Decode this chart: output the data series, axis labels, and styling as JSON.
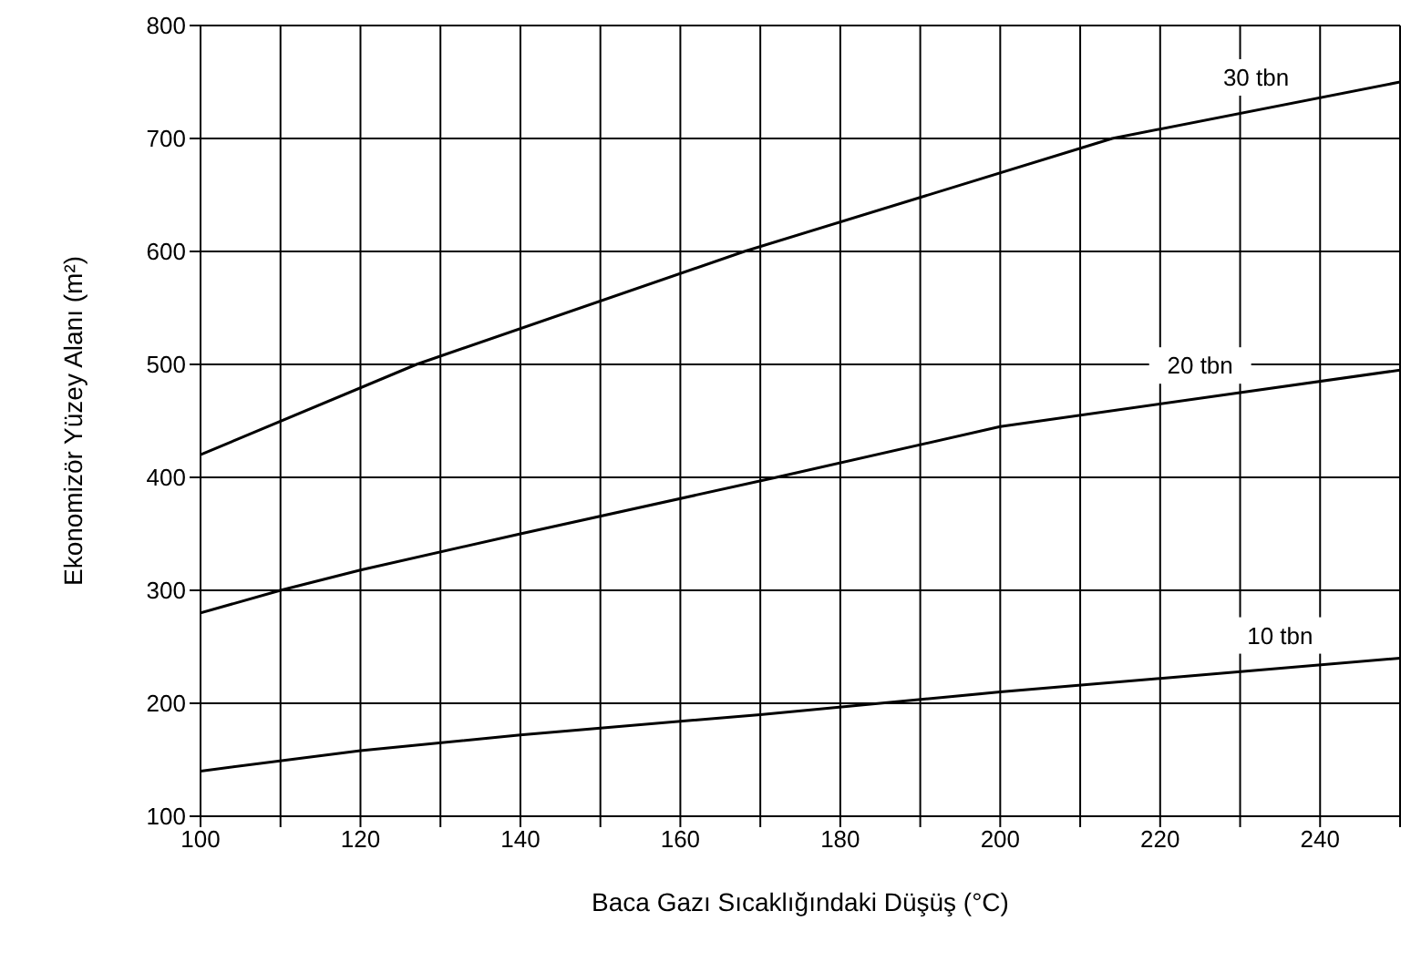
{
  "chart_data": {
    "type": "line",
    "xlabel": "Baca Gazı Sıcaklığındaki Düşüş (°C)",
    "ylabel": "Ekonomizör Yüzey Alanı (m²)",
    "series": [
      {
        "name": "30 tbn",
        "color": "#000000",
        "x": [
          100,
          127,
          168,
          214,
          250
        ],
        "values": [
          420,
          500,
          600,
          700,
          750
        ]
      },
      {
        "name": "20 tbn",
        "color": "#000000",
        "x": [
          100,
          110,
          120,
          140,
          172,
          200,
          250
        ],
        "values": [
          280,
          300,
          318,
          350,
          400,
          445,
          495
        ]
      },
      {
        "name": "10 tbn",
        "color": "#000000",
        "x": [
          100,
          120,
          140,
          170,
          200,
          220,
          250
        ],
        "values": [
          140,
          158,
          172,
          190,
          210,
          222,
          240
        ]
      }
    ],
    "xlim": [
      100,
      250
    ],
    "ylim": [
      100,
      800
    ],
    "xticks": [
      100,
      {
        "value": 110,
        "label": null
      },
      120,
      {
        "value": 130,
        "label": null
      },
      140,
      {
        "value": 150,
        "label": null
      },
      160,
      {
        "value": 170,
        "label": null
      },
      180,
      {
        "value": 190,
        "label": null
      },
      200,
      {
        "value": 210,
        "label": null
      },
      220,
      {
        "value": 230,
        "label": null
      },
      240,
      {
        "value": 250,
        "label": null
      }
    ],
    "yticks": [
      100,
      200,
      300,
      400,
      500,
      600,
      700,
      800
    ],
    "grid": true,
    "marker": "none",
    "line_style": "solid",
    "legend": false
  }
}
